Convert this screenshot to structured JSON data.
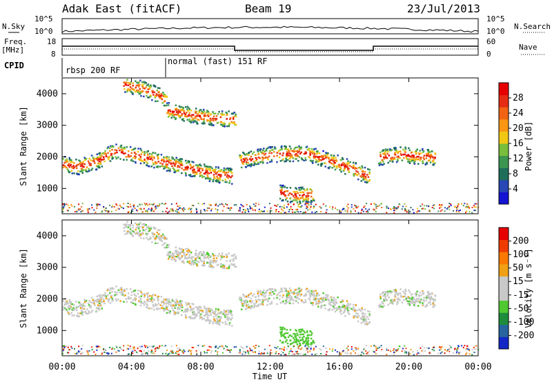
{
  "header": {
    "station": "Adak East (fitACF)",
    "beam": "Beam 19",
    "date": "23/Jul/2013"
  },
  "panels": {
    "nsky": {
      "label": "N.Sky",
      "right_label": "N.Search",
      "ticks": [
        "10^5",
        "10^0"
      ]
    },
    "freq": {
      "label_top": "Freq.",
      "label_bottom": "[MHz]",
      "ticks_left": [
        "18",
        "8"
      ],
      "ticks_right": [
        "60",
        "0"
      ],
      "right_label": "Nave"
    },
    "cpid": {
      "label": "CPID",
      "modes": [
        "rbsp 200 RF",
        "normal (fast) 151 RF"
      ]
    }
  },
  "colors": {
    "power": [
      "#1414d2",
      "#2846b4",
      "#1e6e5a",
      "#3c9650",
      "#78be3c",
      "#f0c814",
      "#fa9614",
      "#f06414",
      "#e62d14",
      "#e60000"
    ],
    "velocity": [
      "#1428c8",
      "#2864a0",
      "#1e8c3c",
      "#50c832",
      "#c8c8c8",
      "#c8c8c8",
      "#f0a014",
      "#fa7800",
      "#f03c00",
      "#e60000"
    ]
  },
  "chart_data": {
    "type": "heatmap",
    "x_axis": {
      "label": "Time UT",
      "ticks": [
        "00:00",
        "04:00",
        "08:00",
        "12:00",
        "16:00",
        "20:00",
        "00:00"
      ],
      "range_hours": [
        0,
        24
      ]
    },
    "y_axis": {
      "label": "Slant Range [km]",
      "ticks": [
        4000,
        3000,
        2000,
        1000
      ],
      "range_km": [
        200,
        4500
      ]
    },
    "power_colorbar": {
      "label": "Power [dB]",
      "ticks": [
        "28",
        "24",
        "20",
        "16",
        "12",
        "8",
        "4"
      ]
    },
    "velocity_colorbar": {
      "label": "Velocity [m s⁻¹]",
      "ticks": [
        "200",
        "100",
        "50",
        "15",
        "-15",
        "-50",
        "-100",
        "-200"
      ]
    },
    "echo_bands": [
      {
        "t": [
          0,
          0.8,
          2,
          2.9,
          4,
          5.5,
          7,
          8.5,
          9.8
        ],
        "r": [
          1800,
          1700,
          1880,
          2200,
          2100,
          1900,
          1700,
          1500,
          1400
        ]
      },
      {
        "t": [
          10.2,
          12,
          14,
          16,
          17.7
        ],
        "r": [
          1900,
          2100,
          2150,
          1800,
          1400
        ]
      },
      {
        "t": [
          18.2,
          19.5,
          20.5,
          21.5
        ],
        "r": [
          2000,
          2100,
          2050,
          2000
        ]
      },
      {
        "t": [
          3.5,
          4.5,
          5.5,
          6
        ],
        "r": [
          4300,
          4200,
          4000,
          3800
        ]
      },
      {
        "t": [
          6,
          8,
          10
        ],
        "r": [
          3500,
          3300,
          3200
        ]
      },
      {
        "t": [
          12.5,
          13.5,
          14.5
        ],
        "r": [
          900,
          800,
          850
        ]
      }
    ]
  }
}
